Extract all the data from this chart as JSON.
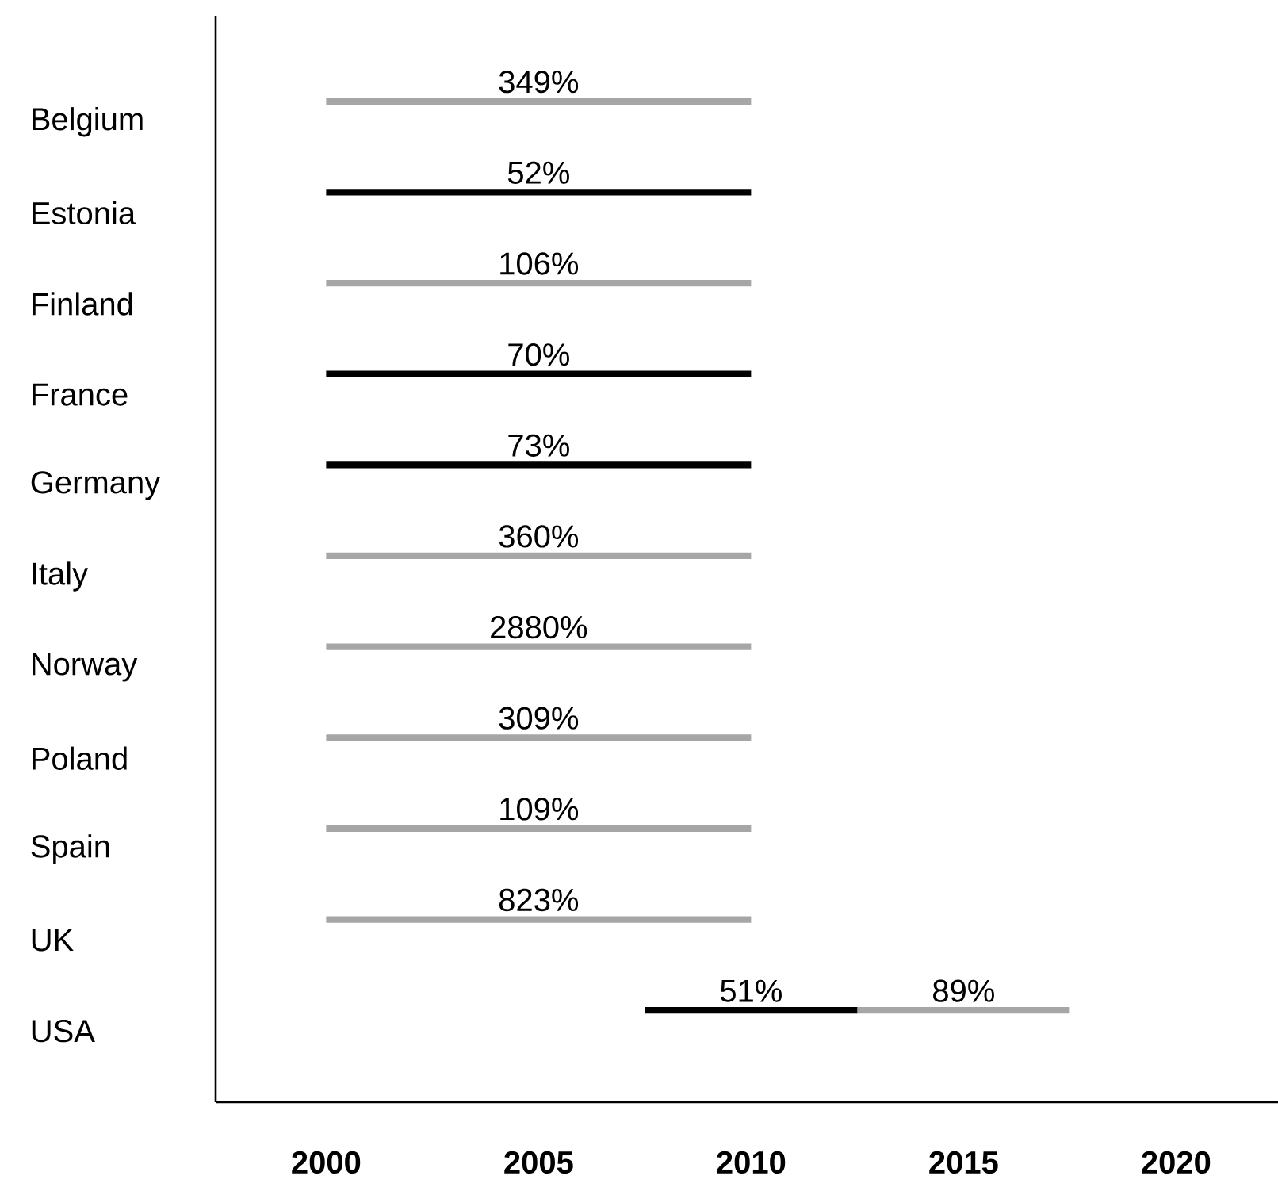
{
  "chart_data": {
    "type": "bar",
    "orientation": "horizontal",
    "categories": [
      "Belgium",
      "Estonia",
      "Finland",
      "France",
      "Germany",
      "Italy",
      "Norway",
      "Poland",
      "Spain",
      "UK",
      "USA"
    ],
    "series": [
      {
        "color": "#a6a6a6",
        "base": [
          2000,
          null,
          2000,
          null,
          null,
          2000,
          2000,
          2000,
          2000,
          2000,
          2012.5
        ],
        "values": [
          10,
          null,
          10,
          null,
          null,
          10,
          10,
          10,
          10,
          10,
          5
        ]
      },
      {
        "color": "#000000",
        "base": [
          null,
          2000,
          null,
          2000,
          2000,
          null,
          null,
          null,
          null,
          null,
          2007.5
        ],
        "values": [
          null,
          10,
          null,
          10,
          10,
          null,
          null,
          null,
          null,
          null,
          5
        ]
      }
    ],
    "annotations": [
      "349%",
      "52%",
      "106%",
      "70%",
      "73%",
      "360%",
      "2880%",
      "309%",
      "109%",
      "823%",
      "51%",
      "89%"
    ],
    "xlim": [
      1997.4,
      2022.4
    ],
    "xticks": [
      2000,
      2005,
      2010,
      2015,
      2020
    ]
  }
}
